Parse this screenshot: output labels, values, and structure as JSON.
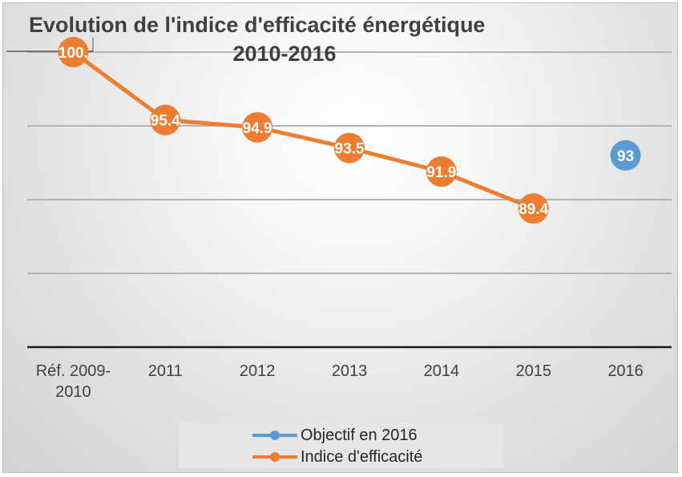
{
  "chart_data": {
    "type": "line",
    "title_line1": "Evolution de l'indice d'efficacité énergétique",
    "title_line2": "2010-2016",
    "categories": [
      "Réf. 2009-2010",
      "2011",
      "2012",
      "2013",
      "2014",
      "2015",
      "2016"
    ],
    "category_lines": [
      [
        "Réf. 2009-",
        "2010"
      ],
      [
        "2011"
      ],
      [
        "2012"
      ],
      [
        "2013"
      ],
      [
        "2014"
      ],
      [
        "2015"
      ],
      [
        "2016"
      ]
    ],
    "ylim": [
      80,
      100
    ],
    "grid": true,
    "legend_position": "bottom",
    "series": [
      {
        "name": "Objectif en 2016",
        "color": "#5b9bd5",
        "values": [
          null,
          null,
          null,
          null,
          null,
          null,
          93
        ],
        "labels": [
          "",
          "",
          "",
          "",
          "",
          "",
          "93"
        ]
      },
      {
        "name": "Indice d'efficacité",
        "color": "#ed7d31",
        "values": [
          100,
          95.4,
          94.9,
          93.5,
          91.9,
          89.4,
          null
        ],
        "labels": [
          "100.",
          "95.4",
          "94.9",
          "93.5",
          "91.9",
          "89.4",
          ""
        ]
      }
    ]
  },
  "legend": {
    "items": [
      {
        "label": "Objectif en 2016",
        "color": "#5b9bd5"
      },
      {
        "label": "Indice d'efficacité",
        "color": "#ed7d31"
      }
    ]
  }
}
